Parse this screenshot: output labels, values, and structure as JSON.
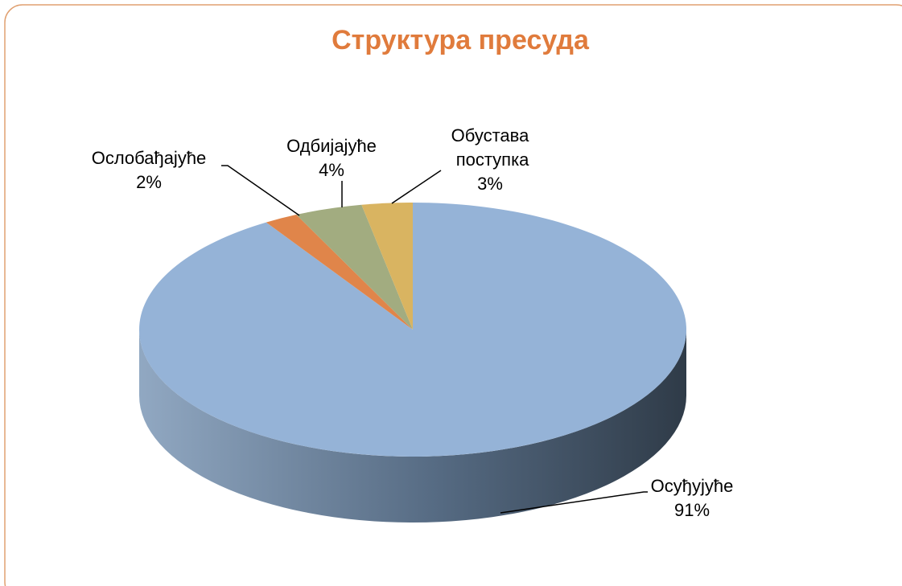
{
  "chart_data": {
    "type": "pie3d",
    "title": "Структура пресуда",
    "categories": [
      "Осуђујуће",
      "Ослобађајуће",
      "Одбијајуће",
      "Обустава поступка"
    ],
    "values": [
      91,
      2,
      4,
      3
    ],
    "value_labels": [
      "91%",
      "2%",
      "4%",
      "3%"
    ],
    "colors": [
      "#95b3d7",
      "#e0854a",
      "#a2ac80",
      "#d9b461"
    ]
  }
}
